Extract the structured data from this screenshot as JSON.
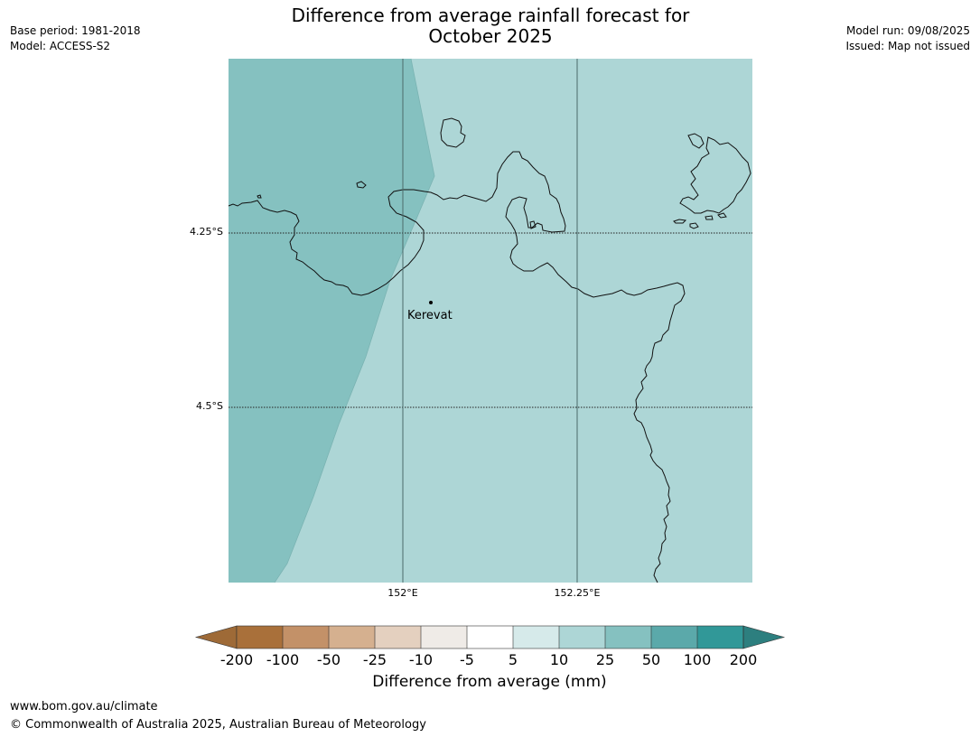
{
  "header": {
    "title_line1": "Difference from average rainfall forecast for",
    "title_line2": "October 2025",
    "base_period": "Base period: 1981-2018",
    "model": "Model: ACCESS-S2",
    "model_run": "Model run: 09/08/2025",
    "issued": "Issued: Map not issued"
  },
  "map": {
    "latitude_labels": [
      "4.25°S",
      "4.5°S"
    ],
    "longitude_labels": [
      "152°E",
      "152.25°E"
    ],
    "town": {
      "name": "Kerevat"
    },
    "regions": [
      {
        "category": "25 to 50",
        "color": "#85c1c0"
      },
      {
        "category": "10 to 25",
        "color": "#add6d6"
      }
    ],
    "graticule": "dotted latitude lines, solid longitude lines",
    "coastline_color": "#000000"
  },
  "colorbar": {
    "title": "Difference from average (mm)",
    "tick_labels": [
      "-200",
      "-100",
      "-50",
      "-25",
      "-10",
      "-5",
      "5",
      "10",
      "25",
      "50",
      "100",
      "200"
    ],
    "colors": [
      "#a9703a",
      "#c39168",
      "#d5b08f",
      "#e4d0bf",
      "#efebe7",
      "#ffffff",
      "#d6eaea",
      "#add6d6",
      "#85c1c0",
      "#5ba9aa",
      "#319898"
    ],
    "extend_low_color": "#9e6a37",
    "extend_high_color": "#2d7f7f"
  },
  "footer": {
    "url": "www.bom.gov.au/climate",
    "copyright": "© Commonwealth of Australia 2025, Australian Bureau of Meteorology"
  }
}
